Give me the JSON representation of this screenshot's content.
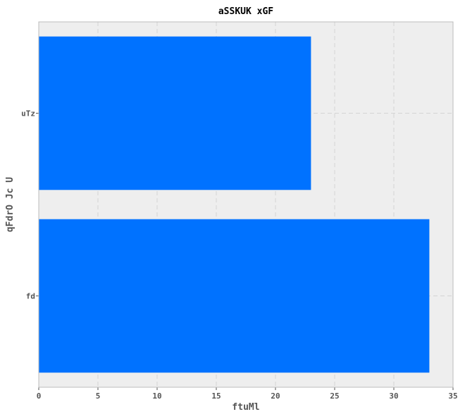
{
  "chart_data": {
    "type": "bar",
    "orientation": "horizontal",
    "title": "aSSKUK xGF",
    "xlabel": "ftuMl",
    "ylabel": "qFdrO Jc U",
    "categories": [
      "uTz",
      "fd"
    ],
    "values": [
      23,
      33
    ],
    "xlim": [
      0,
      35
    ],
    "xticks": [
      0,
      5,
      10,
      15,
      20,
      25,
      30,
      35
    ],
    "grid": true,
    "bar_color": "#0072ff",
    "background_color": "#eeeeee"
  }
}
